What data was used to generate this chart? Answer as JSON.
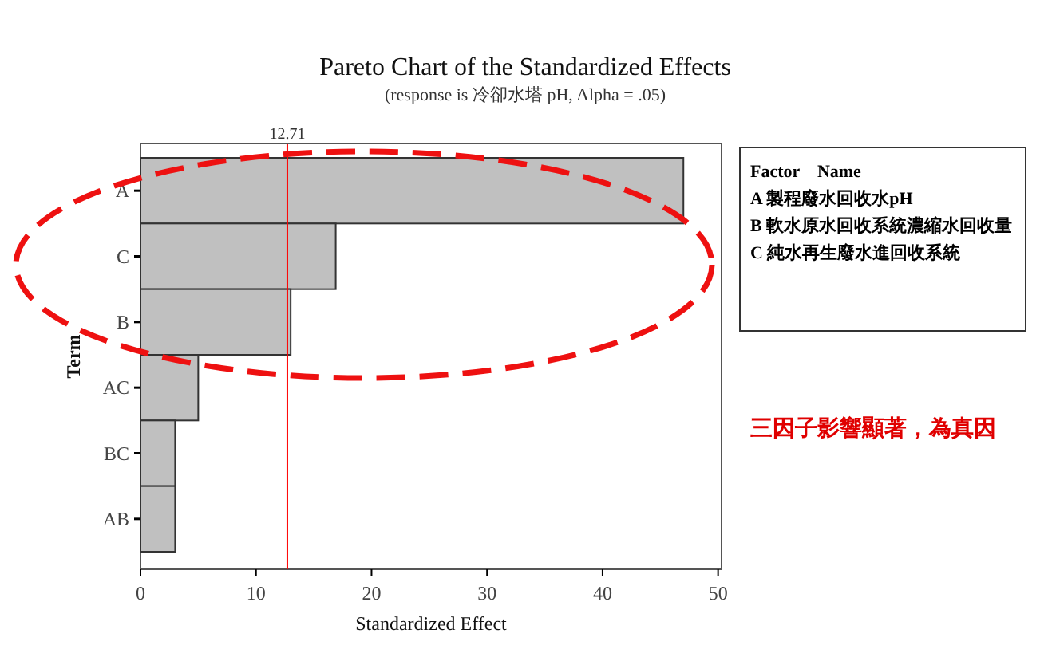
{
  "chart_data": {
    "type": "bar",
    "orientation": "horizontal",
    "title": "Pareto Chart of the Standardized Effects",
    "subtitle": "(response is 冷卻水塔 pH, Alpha = .05)",
    "xlabel": "Standardized Effect",
    "ylabel": "Term",
    "categories": [
      "A",
      "C",
      "B",
      "AC",
      "BC",
      "AB"
    ],
    "values": [
      47,
      16.9,
      13,
      5,
      3,
      3
    ],
    "color": "#c0c0c0",
    "xlim": [
      0,
      50.3
    ],
    "xticks": [
      0,
      10,
      20,
      30,
      40,
      50
    ],
    "ref_lines": [
      {
        "axis": "x",
        "value": 12.71,
        "label": "12.71",
        "color": "#ff0000"
      }
    ],
    "annotations": [
      "Factor　Name",
      "A 製程廢水回收水pH",
      "B 軟水原水回收系統濃縮水回收量",
      "C 純水再生廢水進回收系統",
      "三因子影響顯著，為真因"
    ]
  }
}
